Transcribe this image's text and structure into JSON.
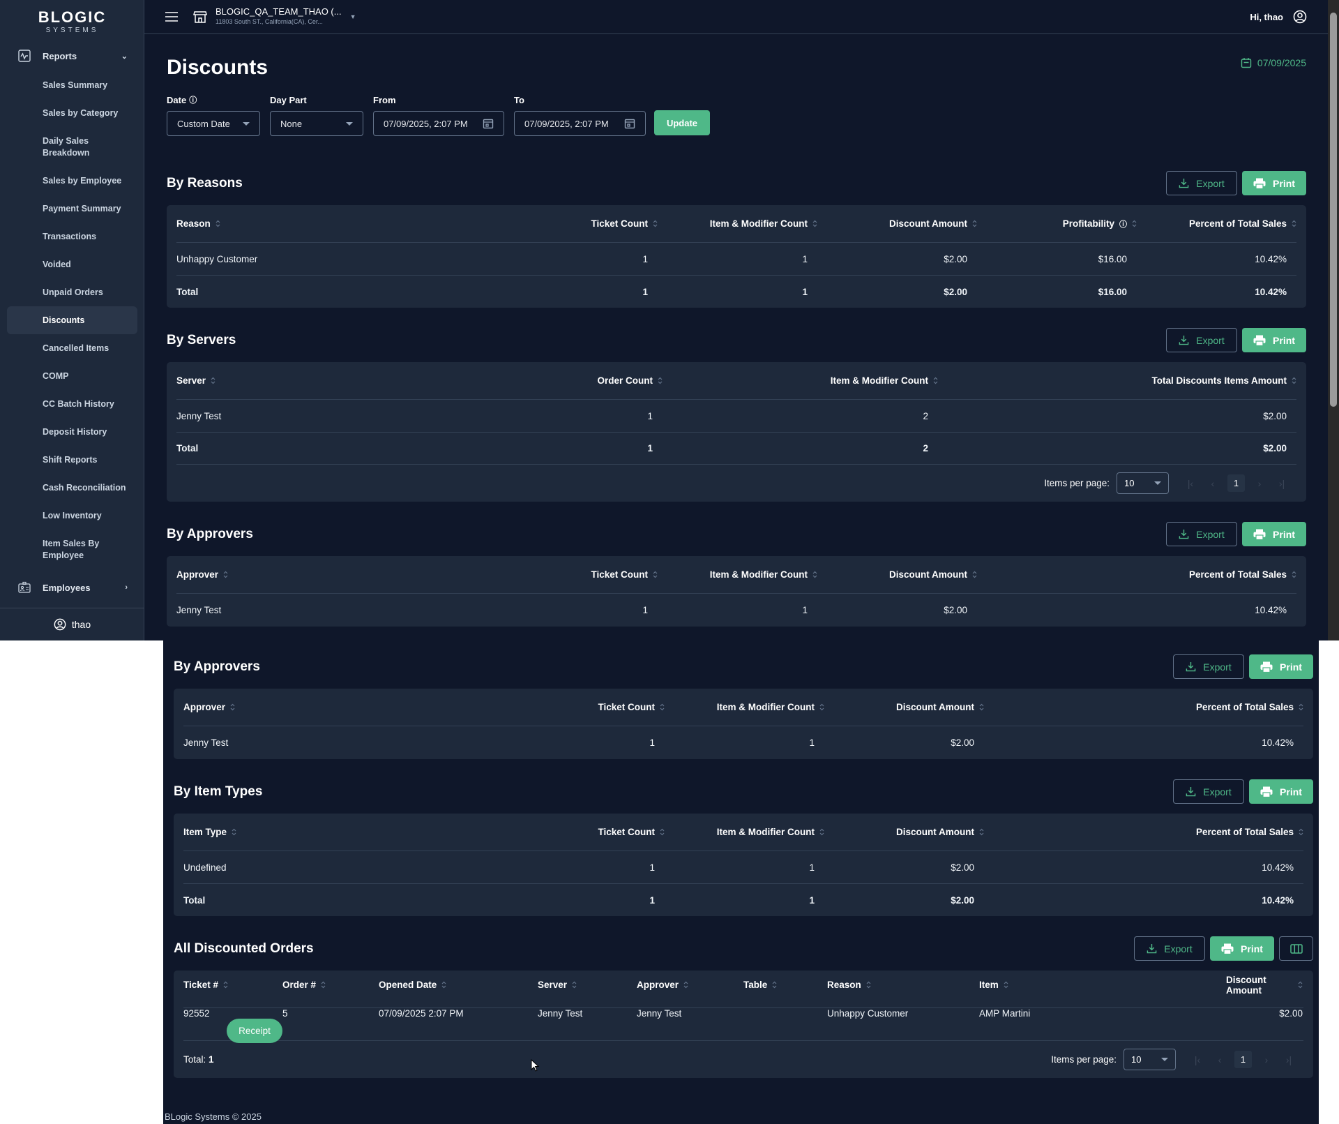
{
  "brand": {
    "name": "BLOGIC",
    "sub": "SYSTEMS"
  },
  "colors": {
    "accent": "#4fb888",
    "background": "#0f172a",
    "panel": "#1e293b"
  },
  "sidebar": {
    "group": {
      "label": "Reports",
      "icon": "activity-chart-icon"
    },
    "items": [
      {
        "label": "Sales Summary"
      },
      {
        "label": "Sales by Category"
      },
      {
        "label": "Daily Sales Breakdown",
        "two": true
      },
      {
        "label": "Sales by Employee"
      },
      {
        "label": "Payment Summary"
      },
      {
        "label": "Transactions"
      },
      {
        "label": "Voided"
      },
      {
        "label": "Unpaid Orders"
      },
      {
        "label": "Discounts",
        "active": true
      },
      {
        "label": "Cancelled Items"
      },
      {
        "label": "COMP"
      },
      {
        "label": "CC Batch History"
      },
      {
        "label": "Deposit History"
      },
      {
        "label": "Shift Reports"
      },
      {
        "label": "Cash Reconciliation"
      },
      {
        "label": "Low Inventory"
      },
      {
        "label": "Item Sales By Employee",
        "two": true
      }
    ],
    "employees": {
      "label": "Employees",
      "icon": "id-badge-icon"
    },
    "user": "thao"
  },
  "header": {
    "store_name": "BLOGIC_QA_TEAM_THAO (...",
    "store_address": "11803 South ST., California(CA), Cer...",
    "greeting": "Hi, thao"
  },
  "page": {
    "title": "Discounts",
    "date": "07/09/2025"
  },
  "filters": {
    "date_label": "Date",
    "date_value": "Custom Date",
    "daypart_label": "Day Part",
    "daypart_value": "None",
    "from_label": "From",
    "from_value": "07/09/2025, 2:07 PM",
    "to_label": "To",
    "to_value": "07/09/2025, 2:07 PM",
    "update_label": "Update"
  },
  "buttons": {
    "export": "Export",
    "print": "Print",
    "receipt": "Receipt"
  },
  "pagination": {
    "label": "Items per page:",
    "per_page": "10",
    "current": "1",
    "total_label": "Total:",
    "total_value": "1"
  },
  "top_view": {
    "sections": [
      {
        "kind": "reasons",
        "title": "By Reasons",
        "columns": [
          {
            "label": "Reason"
          },
          {
            "label": "Ticket Count"
          },
          {
            "label": "Item & Modifier Count"
          },
          {
            "label": "Discount Amount"
          },
          {
            "label": "Profitability",
            "info": true
          },
          {
            "label": "Percent of Total Sales"
          }
        ],
        "rows": [
          [
            "Unhappy Customer",
            "1",
            "1",
            "$2.00",
            "$16.00",
            "10.42%"
          ]
        ],
        "total": [
          "Total",
          "1",
          "1",
          "$2.00",
          "$16.00",
          "10.42%"
        ]
      },
      {
        "kind": "servers",
        "title": "By Servers",
        "paginated": true,
        "columns": [
          {
            "label": "Server"
          },
          {
            "label": "Order Count"
          },
          {
            "label": "Item & Modifier Count"
          },
          {
            "label": "Total Discounts Items Amount"
          }
        ],
        "rows": [
          [
            "Jenny Test",
            "1",
            "2",
            "$2.00"
          ]
        ],
        "total": [
          "Total",
          "1",
          "2",
          "$2.00"
        ]
      },
      {
        "kind": "approvers",
        "title": "By Approvers",
        "columns": [
          {
            "label": "Approver"
          },
          {
            "label": "Ticket Count"
          },
          {
            "label": "Item & Modifier Count"
          },
          {
            "label": "Discount Amount"
          },
          {
            "label": "Percent of Total Sales"
          }
        ],
        "rows": [
          [
            "Jenny Test",
            "1",
            "1",
            "$2.00",
            "10.42%"
          ]
        ]
      }
    ]
  },
  "bottom_view": {
    "sections": [
      {
        "kind": "approvers",
        "title": "By Approvers",
        "columns": [
          {
            "label": "Approver"
          },
          {
            "label": "Ticket Count"
          },
          {
            "label": "Item & Modifier Count"
          },
          {
            "label": "Discount Amount"
          },
          {
            "label": "Percent of Total Sales"
          }
        ],
        "rows": [
          [
            "Jenny Test",
            "1",
            "1",
            "$2.00",
            "10.42%"
          ]
        ]
      },
      {
        "kind": "approvers",
        "title": "By Item Types",
        "columns": [
          {
            "label": "Item Type"
          },
          {
            "label": "Ticket Count"
          },
          {
            "label": "Item & Modifier Count"
          },
          {
            "label": "Discount Amount"
          },
          {
            "label": "Percent of Total Sales"
          }
        ],
        "rows": [
          [
            "Undefined",
            "1",
            "1",
            "$2.00",
            "10.42%"
          ]
        ],
        "total": [
          "Total",
          "1",
          "1",
          "$2.00",
          "10.42%"
        ]
      },
      {
        "kind": "orders",
        "title": "All Discounted Orders",
        "paginated": true,
        "show_total": true,
        "column_toggle": true,
        "columns": [
          {
            "label": "Ticket #"
          },
          {
            "label": "Order #"
          },
          {
            "label": "Opened Date"
          },
          {
            "label": "Server"
          },
          {
            "label": "Approver"
          },
          {
            "label": "Table"
          },
          {
            "label": "Reason"
          },
          {
            "label": "Item"
          },
          {
            "label": "Discount Amount"
          }
        ],
        "rows": [
          [
            "92552",
            "5",
            "07/09/2025 2:07 PM",
            "Jenny Test",
            "Jenny Test",
            "",
            "Unhappy Customer",
            "AMP Martini",
            "$2.00"
          ]
        ]
      }
    ]
  },
  "footer": "BLogic Systems © 2025"
}
